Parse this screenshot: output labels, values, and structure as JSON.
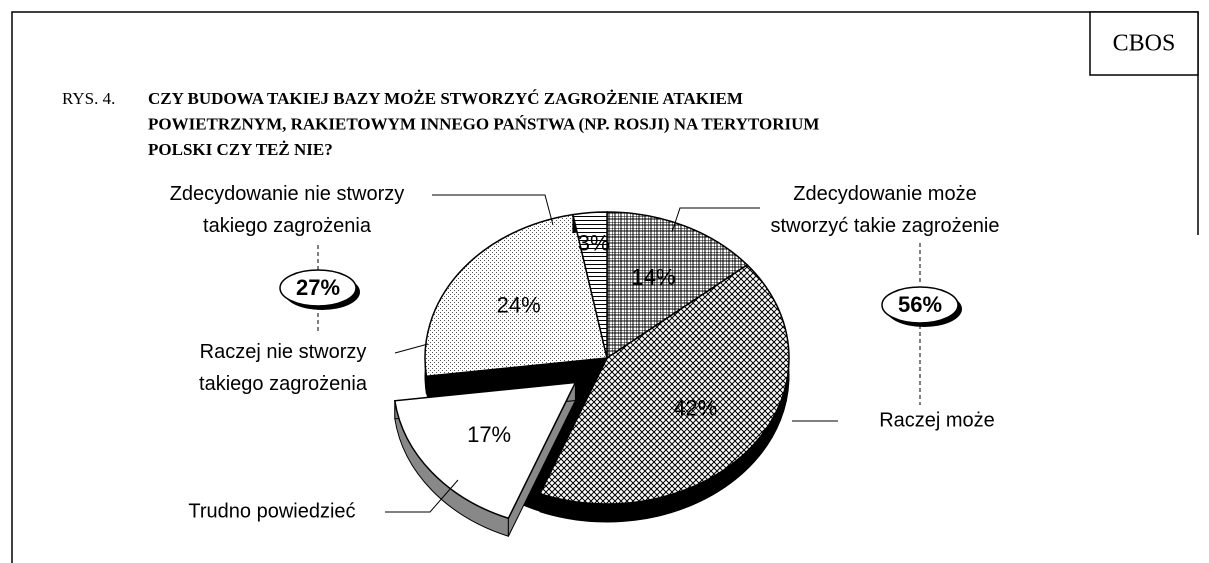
{
  "chart_data": {
    "type": "pie3d",
    "source": "CBOS",
    "figure_label": "RYS. 4.",
    "title": "CZY BUDOWA TAKIEJ BAZY MOŻE STWORZYĆ ZAGROŻENIE ATAKIEM\nPOWIETRZNYM, RAKIETOWYM INNEGO PAŃSTWA (NP. ROSJI) NA TERYTORIUM\nPOLSKI CZY TEŻ NIE?",
    "categories": [
      "Zdecydowanie może\nstworzyć takie zagrożenie",
      "Raczej może",
      "Trudno powiedzieć",
      "Raczej nie stworzy\ntakiego zagrożenia",
      "Zdecydowanie nie stworzy\ntakiego zagrożenia"
    ],
    "values": [
      14,
      42,
      17,
      24,
      3
    ],
    "value_labels": [
      "14%",
      "42%",
      "17%",
      "24%",
      "3%"
    ],
    "exploded": [
      false,
      false,
      true,
      false,
      false
    ],
    "group_totals": [
      {
        "value": 56,
        "label": "56%"
      },
      {
        "value": 27,
        "label": "27%"
      }
    ]
  }
}
